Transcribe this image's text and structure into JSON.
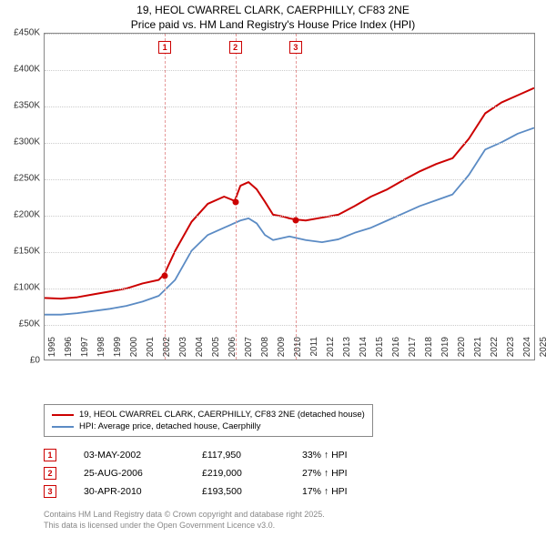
{
  "title_line1": "19, HEOL CWARREL CLARK, CAERPHILLY, CF83 2NE",
  "title_line2": "Price paid vs. HM Land Registry's House Price Index (HPI)",
  "chart": {
    "type": "line",
    "background_color": "#ffffff",
    "grid_color": "#cccccc",
    "border_color": "#888888",
    "text_color": "#333333",
    "y": {
      "min": 0,
      "max": 450000,
      "tick_step": 50000,
      "labels": [
        "£0",
        "£50K",
        "£100K",
        "£150K",
        "£200K",
        "£250K",
        "£300K",
        "£350K",
        "£400K",
        "£450K"
      ]
    },
    "x": {
      "min": 1995,
      "max": 2025,
      "tick_step": 1,
      "labels": [
        "1995",
        "1996",
        "1997",
        "1998",
        "1999",
        "2000",
        "2001",
        "2002",
        "2003",
        "2004",
        "2005",
        "2006",
        "2007",
        "2008",
        "2009",
        "2010",
        "2011",
        "2012",
        "2013",
        "2014",
        "2015",
        "2016",
        "2017",
        "2018",
        "2019",
        "2020",
        "2021",
        "2022",
        "2023",
        "2024",
        "2025"
      ]
    },
    "series": [
      {
        "name": "property",
        "label": "19, HEOL CWARREL CLARK, CAERPHILLY, CF83 2NE (detached house)",
        "color": "#cc0000",
        "line_width": 2,
        "data": [
          [
            1995,
            85000
          ],
          [
            1996,
            84000
          ],
          [
            1997,
            86000
          ],
          [
            1998,
            90000
          ],
          [
            1999,
            94000
          ],
          [
            2000,
            98000
          ],
          [
            2001,
            105000
          ],
          [
            2002,
            110000
          ],
          [
            2002.34,
            117950
          ],
          [
            2003,
            150000
          ],
          [
            2004,
            190000
          ],
          [
            2005,
            215000
          ],
          [
            2006,
            225000
          ],
          [
            2006.65,
            219000
          ],
          [
            2007,
            240000
          ],
          [
            2007.5,
            245000
          ],
          [
            2008,
            235000
          ],
          [
            2008.5,
            218000
          ],
          [
            2009,
            200000
          ],
          [
            2009.7,
            197000
          ],
          [
            2010,
            195000
          ],
          [
            2010.33,
            193500
          ],
          [
            2011,
            192000
          ],
          [
            2012,
            196000
          ],
          [
            2013,
            200000
          ],
          [
            2014,
            212000
          ],
          [
            2015,
            225000
          ],
          [
            2016,
            235000
          ],
          [
            2017,
            248000
          ],
          [
            2018,
            260000
          ],
          [
            2019,
            270000
          ],
          [
            2020,
            278000
          ],
          [
            2021,
            305000
          ],
          [
            2022,
            340000
          ],
          [
            2023,
            355000
          ],
          [
            2024,
            365000
          ],
          [
            2025,
            375000
          ]
        ]
      },
      {
        "name": "hpi",
        "label": "HPI: Average price, detached house, Caerphilly",
        "color": "#5b8bc4",
        "line_width": 1.8,
        "data": [
          [
            1995,
            62000
          ],
          [
            1996,
            62000
          ],
          [
            1997,
            64000
          ],
          [
            1998,
            67000
          ],
          [
            1999,
            70000
          ],
          [
            2000,
            74000
          ],
          [
            2001,
            80000
          ],
          [
            2002,
            88000
          ],
          [
            2003,
            110000
          ],
          [
            2004,
            150000
          ],
          [
            2005,
            172000
          ],
          [
            2006,
            182000
          ],
          [
            2007,
            192000
          ],
          [
            2007.5,
            195000
          ],
          [
            2008,
            188000
          ],
          [
            2008.5,
            172000
          ],
          [
            2009,
            165000
          ],
          [
            2010,
            170000
          ],
          [
            2011,
            165000
          ],
          [
            2012,
            162000
          ],
          [
            2013,
            166000
          ],
          [
            2014,
            175000
          ],
          [
            2015,
            182000
          ],
          [
            2016,
            192000
          ],
          [
            2017,
            202000
          ],
          [
            2018,
            212000
          ],
          [
            2019,
            220000
          ],
          [
            2020,
            228000
          ],
          [
            2021,
            255000
          ],
          [
            2022,
            290000
          ],
          [
            2023,
            300000
          ],
          [
            2024,
            312000
          ],
          [
            2025,
            320000
          ]
        ]
      }
    ],
    "markers": [
      {
        "n": "1",
        "year": 2002.34,
        "top_offset": -22,
        "vline_color": "#e69999"
      },
      {
        "n": "2",
        "year": 2006.65,
        "top_offset": -22,
        "vline_color": "#e69999"
      },
      {
        "n": "3",
        "year": 2010.33,
        "top_offset": -22,
        "vline_color": "#e69999"
      }
    ],
    "sale_points": [
      {
        "year": 2002.34,
        "value": 117950
      },
      {
        "year": 2006.65,
        "value": 219000
      },
      {
        "year": 2010.33,
        "value": 193500
      }
    ],
    "marker_box_color": "#cc0000",
    "marker_box_bg": "#ffffff"
  },
  "legend": {
    "items": [
      {
        "color": "#cc0000",
        "label": "19, HEOL CWARREL CLARK, CAERPHILLY, CF83 2NE (detached house)"
      },
      {
        "color": "#5b8bc4",
        "label": "HPI: Average price, detached house, Caerphilly"
      }
    ]
  },
  "sales": [
    {
      "n": "1",
      "date": "03-MAY-2002",
      "price": "£117,950",
      "pct": "33% ↑ HPI"
    },
    {
      "n": "2",
      "date": "25-AUG-2006",
      "price": "£219,000",
      "pct": "27% ↑ HPI"
    },
    {
      "n": "3",
      "date": "30-APR-2010",
      "price": "£193,500",
      "pct": "17% ↑ HPI"
    }
  ],
  "footer_line1": "Contains HM Land Registry data © Crown copyright and database right 2025.",
  "footer_line2": "This data is licensed under the Open Government Licence v3.0."
}
